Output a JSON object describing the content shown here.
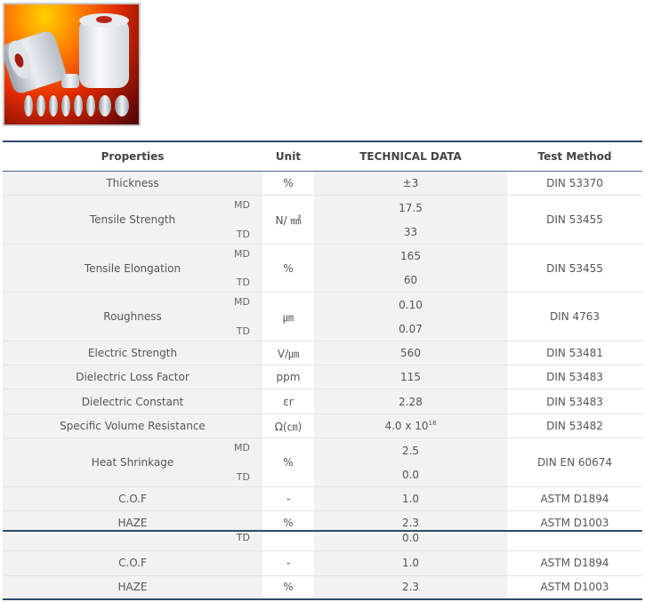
{
  "header": {
    "properties": "Properties",
    "unit": "Unit",
    "technical": "TECHNICAL DATA",
    "method": "Test Method"
  },
  "rows": [
    {
      "name": "Thickness",
      "unit": "%",
      "value": "±3",
      "method": "DIN 53370"
    },
    {
      "name": "Tensile Strength",
      "md": "MD",
      "td": "TD",
      "unit": "N/ ㎟",
      "v1": "17.5",
      "v2": "33",
      "method": "DIN 53455"
    },
    {
      "name": "Tensile Elongation",
      "md": "MD",
      "td": "TD",
      "unit": "%",
      "v1": "165",
      "v2": "60",
      "method": "DIN 53455"
    },
    {
      "name": "Roughness",
      "md": "MD",
      "td": "TD",
      "unit": "㎛",
      "v1": "0.10",
      "v2": "0.07",
      "method": "DIN 4763"
    },
    {
      "name": "Electric Strength",
      "unit": "V/㎛",
      "value": "560",
      "method": "DIN 53481"
    },
    {
      "name": "Dielectric Loss Factor",
      "unit": "ppm",
      "value": "115",
      "method": "DIN 53483"
    },
    {
      "name": "Dielectric Constant",
      "unit": "εr",
      "value": "2.28",
      "method": "DIN 53483"
    },
    {
      "name": "Specific Volume Resistance",
      "unit": "Ω(㎝)",
      "value_base": "4.0 x 10",
      "value_exp": "18",
      "method": "DIN 53482"
    },
    {
      "name": "Heat Shrinkage",
      "md": "MD",
      "td": "TD",
      "unit": "%",
      "v1": "2.5",
      "v2": "0.0",
      "method": "DIN EN 60674"
    },
    {
      "name": "C.O.F",
      "unit": "-",
      "value": "1.0",
      "method": "ASTM D1894"
    },
    {
      "name": "HAZE",
      "unit": "%",
      "value": "2.3",
      "method": "ASTM D1003"
    }
  ],
  "repeat": {
    "td": "TD",
    "td_value": "0.0",
    "cof": {
      "name": "C.O.F",
      "unit": "-",
      "value": "1.0",
      "method": "ASTM D1894"
    },
    "haze": {
      "name": "HAZE",
      "unit": "%",
      "value": "2.3",
      "method": "ASTM D1003"
    }
  }
}
